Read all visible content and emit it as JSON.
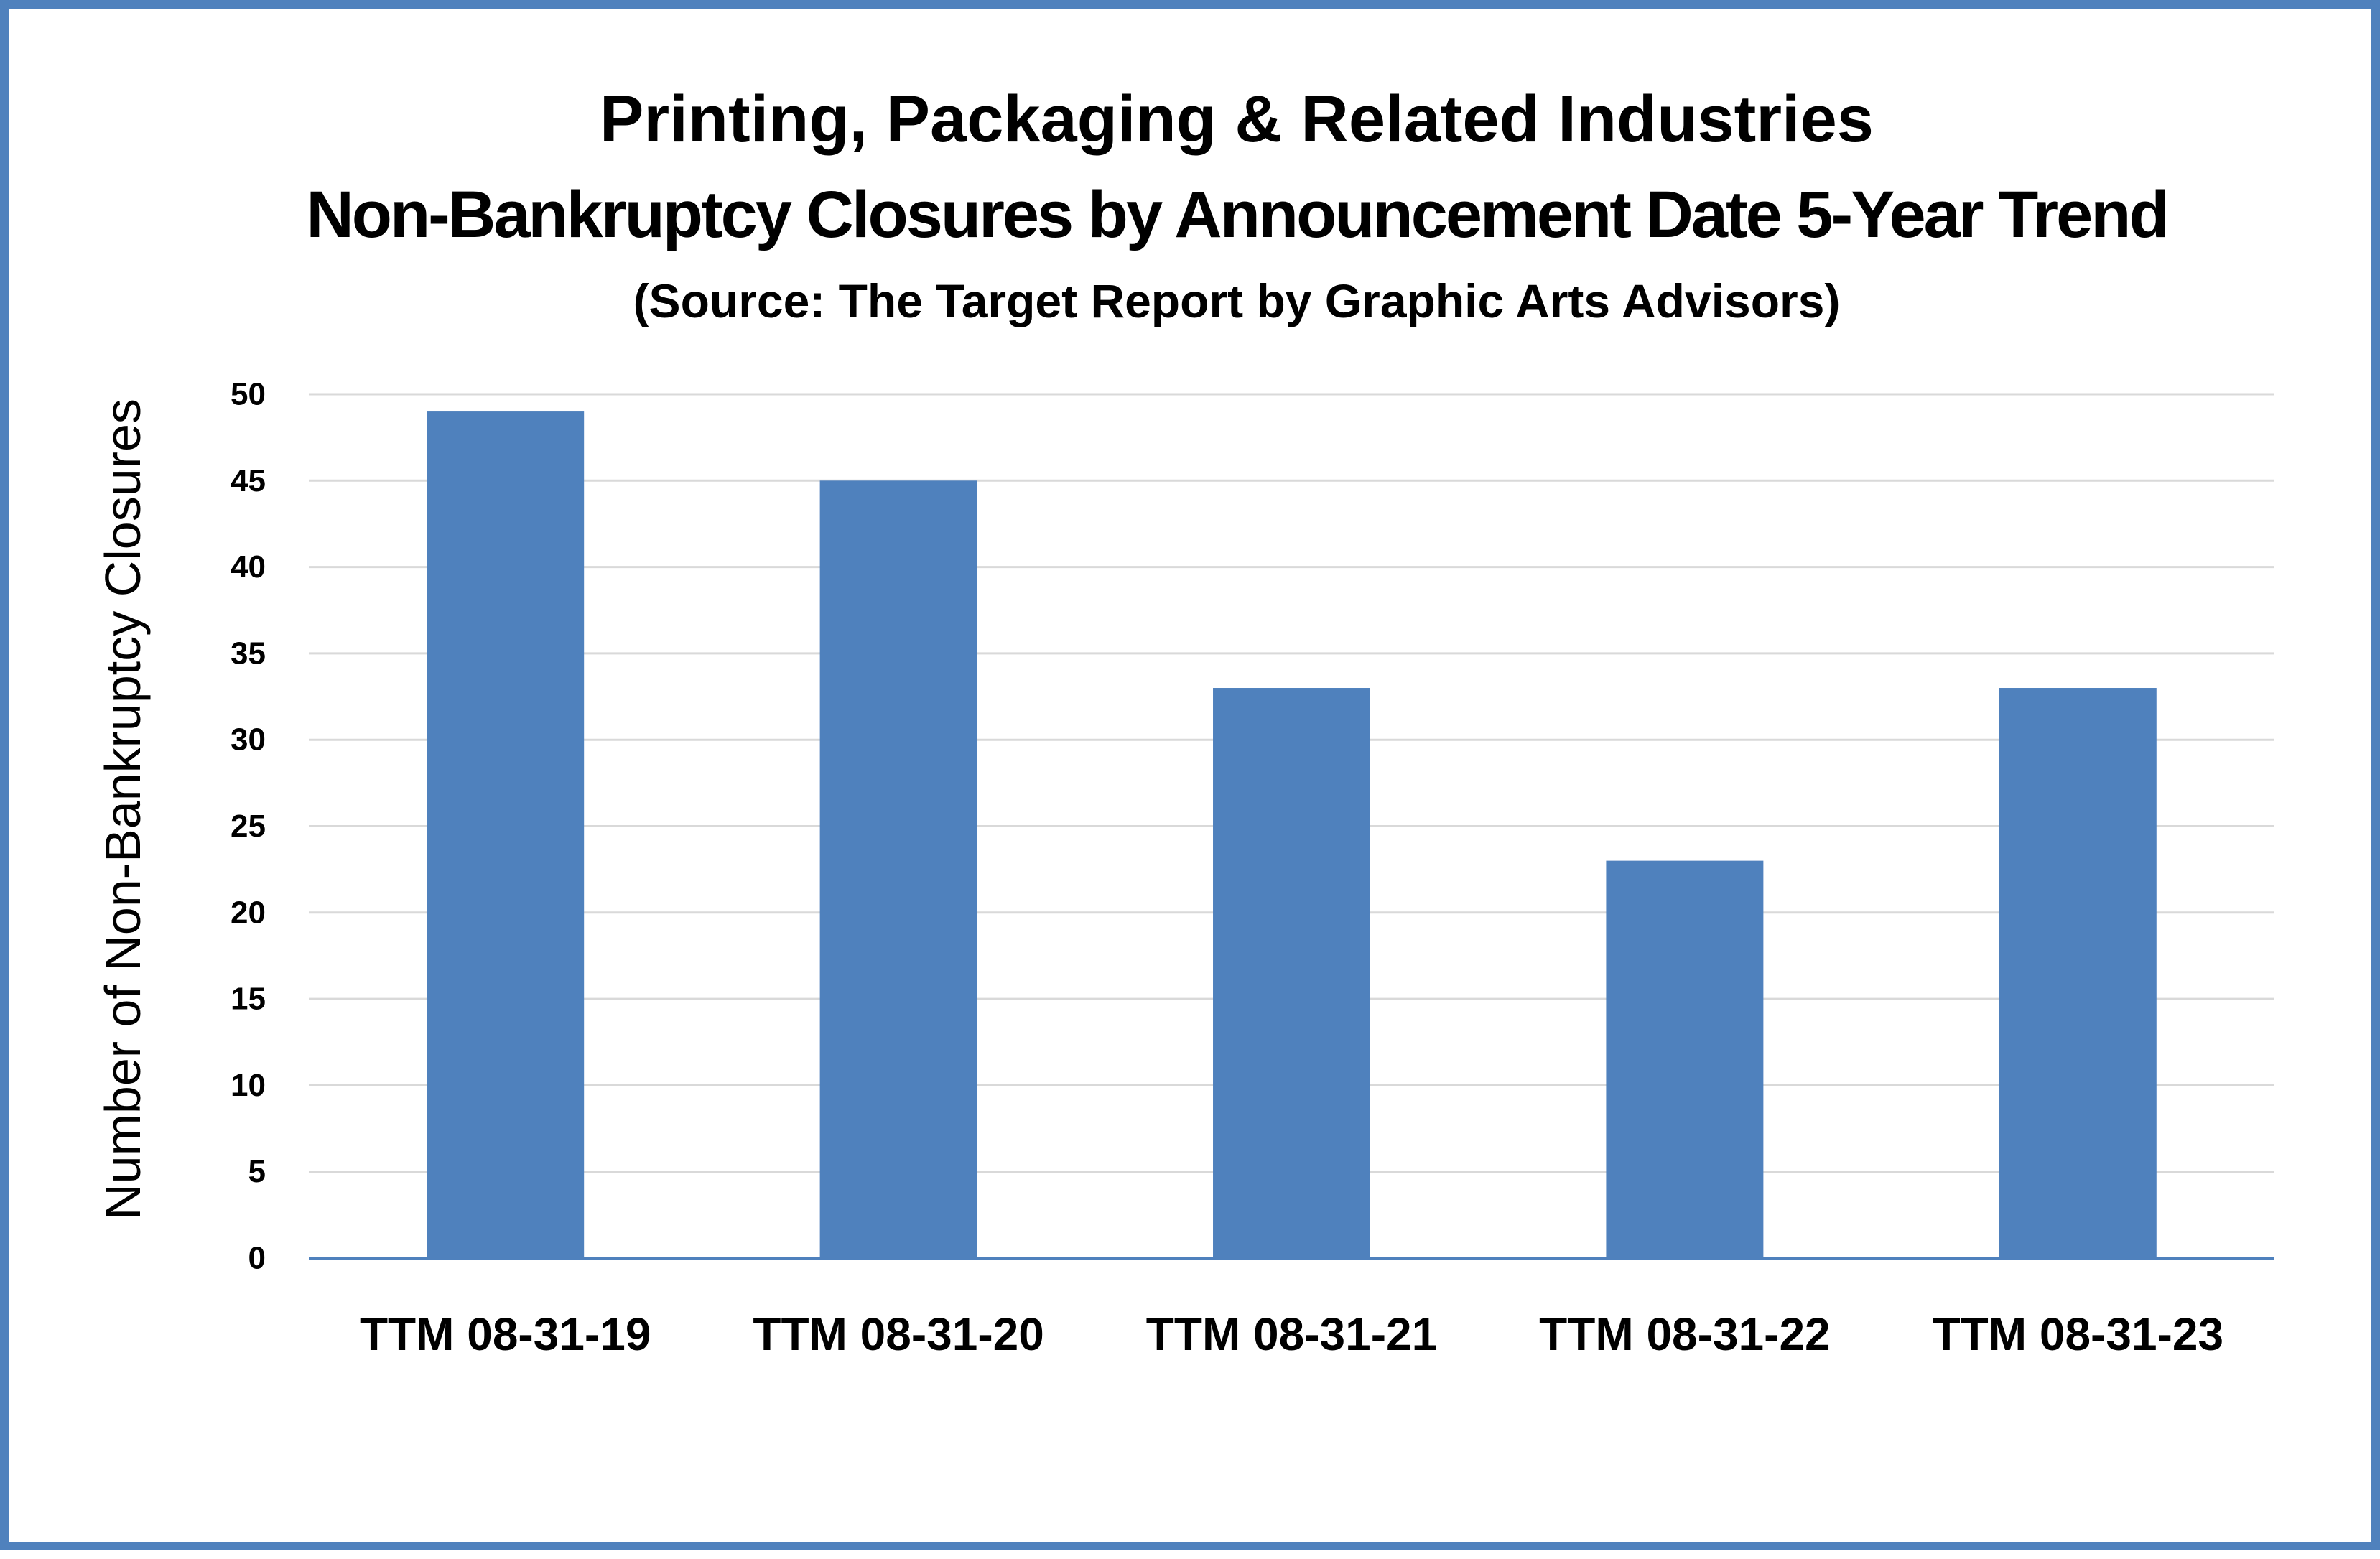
{
  "chart_data": {
    "type": "bar",
    "title": "Printing, Packaging & Related Industries",
    "subtitle": "Non-Bankruptcy Closures by Announcement Date 5-Year Trend",
    "source": "(Source: The Target Report by Graphic Arts Advisors)",
    "xlabel": "",
    "ylabel": "Number of Non-Bankruptcy Closures",
    "categories": [
      "TTM 08-31-19",
      "TTM 08-31-20",
      "TTM 08-31-21",
      "TTM 08-31-22",
      "TTM 08-31-23"
    ],
    "values": [
      49,
      45,
      33,
      23,
      33
    ],
    "ylim": [
      0,
      50
    ],
    "yticks": [
      "0",
      "5",
      "10",
      "15",
      "20",
      "25",
      "30",
      "35",
      "40",
      "45",
      "50"
    ],
    "grid": true,
    "legend": "none",
    "colors": {
      "bar": "#4f81bd",
      "border": "#4f81bd",
      "gridline": "#d9d9d9",
      "axis": "#4f81bd"
    }
  }
}
